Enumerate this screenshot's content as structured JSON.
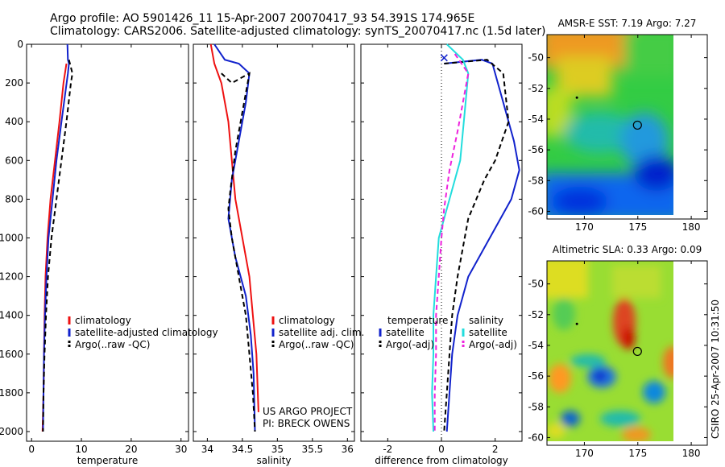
{
  "header": {
    "line1": "Argo profile: AO 5901426_11 15-Apr-2007 20070417_93 54.391S 174.965E",
    "line2": "Climatology: CARS2006. Satellite-adjusted climatology: synTS_20070417.nc (1.5d later)"
  },
  "credits": {
    "project": "US ARGO PROJECT",
    "pi": "PI: BRECK OWENS",
    "stamp": "CSIRO 25-Apr-2007 10:31:50"
  },
  "colors": {
    "climatology": "#ee1111",
    "satellite": "#1122cc",
    "argo": "#000000",
    "sal_sat": "#22dddd",
    "sal_argo": "#ee22dd"
  },
  "chart_data": [
    {
      "type": "line",
      "xlabel": "temperature",
      "xlim": [
        -1,
        31.5
      ],
      "xticks": [
        0,
        10,
        20,
        30
      ],
      "ylim": [
        2050,
        0
      ],
      "yticks": [
        0,
        200,
        400,
        600,
        800,
        1000,
        1200,
        1400,
        1600,
        1800,
        2000
      ],
      "legend": [
        "climatology",
        "satellite-adjusted climatology",
        "Argo(..raw -QC)"
      ],
      "legend_placement": "lower-right",
      "series": [
        {
          "name": "climatology",
          "color": "#ee1111",
          "dash": "",
          "x": [
            7.0,
            6.4,
            5.6,
            4.7,
            3.8,
            3.2,
            2.8,
            2.6,
            2.5,
            2.4,
            2.3,
            2.2
          ],
          "y": [
            100,
            200,
            400,
            600,
            800,
            1000,
            1200,
            1400,
            1600,
            1800,
            1900,
            2000
          ]
        },
        {
          "name": "satellite-adjusted climatology",
          "color": "#1122cc",
          "dash": "",
          "x": [
            7.2,
            7.3,
            7.5,
            7.3,
            6.0,
            5.0,
            4.2,
            3.4,
            3.0,
            2.7,
            2.5,
            2.4,
            2.3
          ],
          "y": [
            0,
            80,
            100,
            150,
            400,
            600,
            800,
            1000,
            1200,
            1400,
            1600,
            1800,
            2000
          ]
        },
        {
          "name": "Argo(..raw -QC)",
          "color": "#000000",
          "dash": "6,4",
          "x": [
            7.5,
            8.2,
            7.9,
            7.0,
            6.0,
            5.0,
            4.0,
            3.3,
            2.9,
            2.6,
            2.4,
            2.3
          ],
          "y": [
            80,
            150,
            200,
            400,
            600,
            800,
            1000,
            1200,
            1400,
            1600,
            1800,
            2000
          ]
        }
      ]
    },
    {
      "type": "line",
      "xlabel": "salinity",
      "xlim": [
        33.8,
        36.1
      ],
      "xticks": [
        34,
        34.5,
        35,
        35.5,
        36
      ],
      "ylim": [
        2050,
        0
      ],
      "legend": [
        "climatology",
        "satellite adj. clim.",
        "Argo(..raw -QC)"
      ],
      "legend_placement": "lower-right",
      "series": [
        {
          "name": "climatology",
          "color": "#ee1111",
          "dash": "",
          "x": [
            34.05,
            34.1,
            34.2,
            34.3,
            34.35,
            34.4,
            34.5,
            34.6,
            34.65,
            34.7,
            34.73
          ],
          "y": [
            0,
            100,
            200,
            400,
            600,
            800,
            1000,
            1200,
            1400,
            1600,
            1900
          ]
        },
        {
          "name": "satellite adj. clim.",
          "color": "#1122cc",
          "dash": "",
          "x": [
            34.1,
            34.25,
            34.45,
            34.6,
            34.55,
            34.45,
            34.35,
            34.3,
            34.4,
            34.55,
            34.62,
            34.66,
            34.68
          ],
          "y": [
            0,
            80,
            100,
            150,
            300,
            500,
            700,
            900,
            1100,
            1300,
            1500,
            1700,
            2000
          ]
        },
        {
          "name": "Argo(..raw -QC)",
          "color": "#000000",
          "dash": "6,4",
          "x": [
            34.2,
            34.35,
            34.6,
            34.5,
            34.4,
            34.33,
            34.3,
            34.35,
            34.45,
            34.55,
            34.6,
            34.65,
            34.68
          ],
          "y": [
            150,
            200,
            150,
            350,
            550,
            750,
            850,
            1000,
            1200,
            1400,
            1600,
            1800,
            2000
          ]
        }
      ]
    },
    {
      "type": "line",
      "xlabel": "difference from climatology",
      "xlim": [
        -3,
        3
      ],
      "xticks": [
        -2,
        0,
        2
      ],
      "ylim": [
        2050,
        0
      ],
      "legend_headers": [
        "temperature",
        "salinity"
      ],
      "legend": [
        "satellite",
        "Argo(-adj)",
        "satellite",
        "Argo(-adj)"
      ],
      "legend_placement": "lower-center",
      "series": [
        {
          "name": "satellite",
          "color": "#1122cc",
          "dash": "",
          "x": [
            0.1,
            1.5,
            1.9,
            2.3,
            2.7,
            2.9,
            2.6,
            1.8,
            1.0,
            0.6,
            0.4,
            0.3,
            0.2
          ],
          "y": [
            100,
            80,
            100,
            300,
            500,
            650,
            800,
            1000,
            1200,
            1400,
            1600,
            1800,
            2000
          ]
        },
        {
          "name": "Argo(-adj)",
          "color": "#000000",
          "dash": "6,4",
          "x": [
            0.1,
            1.7,
            2.3,
            2.5,
            2.0,
            1.6,
            1.0,
            0.6,
            0.4,
            0.3,
            0.2,
            0.1
          ],
          "y": [
            100,
            80,
            150,
            400,
            600,
            700,
            900,
            1200,
            1400,
            1600,
            1800,
            2000
          ]
        },
        {
          "name": "satellite",
          "color": "#22dddd",
          "dash": "",
          "x": [
            0.2,
            0.8,
            1.0,
            0.9,
            0.7,
            0.3,
            -0.1,
            -0.2,
            -0.3,
            -0.3,
            -0.35,
            -0.3
          ],
          "y": [
            0,
            80,
            150,
            300,
            600,
            800,
            1000,
            1200,
            1400,
            1600,
            1800,
            2000
          ]
        },
        {
          "name": "Argo(-adj)",
          "color": "#ee22dd",
          "dash": "6,4",
          "x": [
            0.5,
            1.0,
            0.8,
            0.6,
            0.3,
            0.1,
            0.0,
            -0.1,
            -0.2,
            -0.2,
            -0.25,
            -0.25
          ],
          "y": [
            50,
            150,
            300,
            450,
            650,
            850,
            1000,
            1200,
            1400,
            1600,
            1800,
            2000
          ]
        }
      ]
    },
    {
      "type": "heatmap",
      "title": "AMSR-E SST: 7.19 Argo: 7.27",
      "xlim": [
        166.5,
        181.5
      ],
      "xticks": [
        170,
        175,
        180
      ],
      "ylim": [
        -60.5,
        -48.5
      ],
      "yticks": [
        -50,
        -52,
        -54,
        -56,
        -58,
        -60
      ],
      "argo_position": {
        "lon": 174.965,
        "lat": -54.391
      }
    },
    {
      "type": "heatmap",
      "title": "Altimetric SLA: 0.33 Argo: 0.09",
      "xlim": [
        166.5,
        181.5
      ],
      "xticks": [
        170,
        175,
        180
      ],
      "ylim": [
        -60.5,
        -48.5
      ],
      "yticks": [
        -50,
        -52,
        -54,
        -56,
        -58,
        -60
      ],
      "argo_position": {
        "lon": 174.965,
        "lat": -54.391
      }
    }
  ]
}
